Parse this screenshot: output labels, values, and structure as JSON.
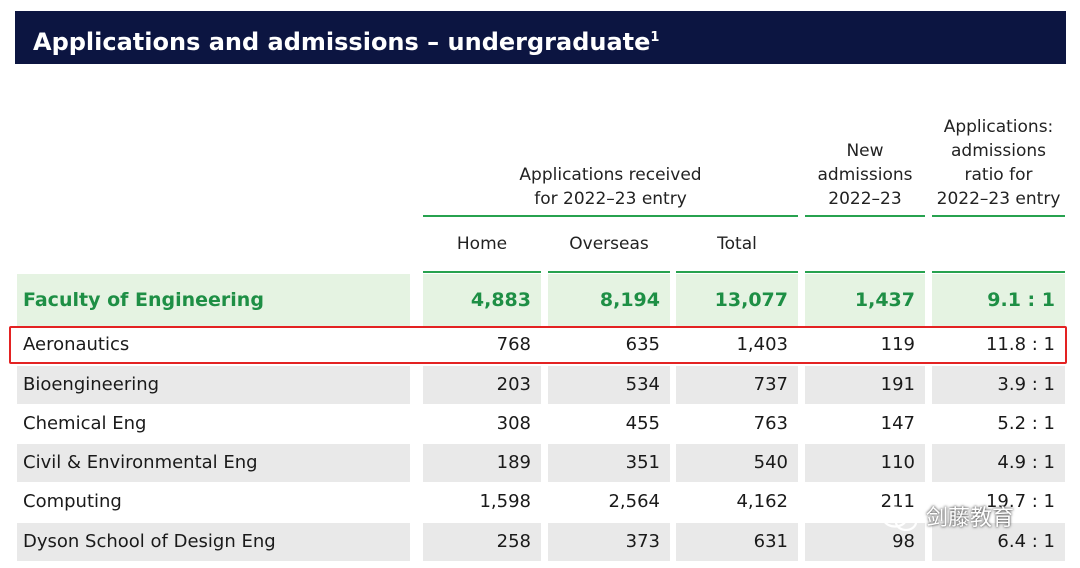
{
  "title": "Applications and admissions – undergraduate",
  "title_footnote": "1",
  "headers": {
    "applications_received": "Applications received\nfor 2022–23 entry",
    "new_admissions": "New\nadmissions\n2022–23",
    "ratio": "Applications:\nadmissions\nratio for\n2022–23 entry",
    "home": "Home",
    "overseas": "Overseas",
    "total": "Total"
  },
  "faculty": {
    "name": "Faculty of Engineering",
    "home": "4,883",
    "overseas": "8,194",
    "total": "13,077",
    "admissions": "1,437",
    "ratio": "9.1 : 1"
  },
  "departments": [
    {
      "name": "Aeronautics",
      "home": "768",
      "overseas": "635",
      "total": "1,403",
      "admissions": "119",
      "ratio": "11.8 : 1",
      "shaded": false
    },
    {
      "name": "Bioengineering",
      "home": "203",
      "overseas": "534",
      "total": "737",
      "admissions": "191",
      "ratio": "3.9 : 1",
      "shaded": true
    },
    {
      "name": "Chemical Eng",
      "home": "308",
      "overseas": "455",
      "total": "763",
      "admissions": "147",
      "ratio": "5.2 : 1",
      "shaded": false
    },
    {
      "name": "Civil & Environmental Eng",
      "home": "189",
      "overseas": "351",
      "total": "540",
      "admissions": "110",
      "ratio": "4.9 : 1",
      "shaded": true
    },
    {
      "name": "Computing",
      "home": "1,598",
      "overseas": "2,564",
      "total": "4,162",
      "admissions": "211",
      "ratio": "19.7 : 1",
      "shaded": false
    },
    {
      "name": "Dyson School of Design Eng",
      "home": "258",
      "overseas": "373",
      "total": "631",
      "admissions": "98",
      "ratio": "6.4 : 1",
      "shaded": true
    }
  ],
  "watermark": "剑藤教育",
  "colors": {
    "title_bg": "#0c1541",
    "accent_green": "#27a24f",
    "faculty_bg": "#e5f3e2",
    "row_shade": "#e9e9e9",
    "highlight": "#e32222"
  }
}
